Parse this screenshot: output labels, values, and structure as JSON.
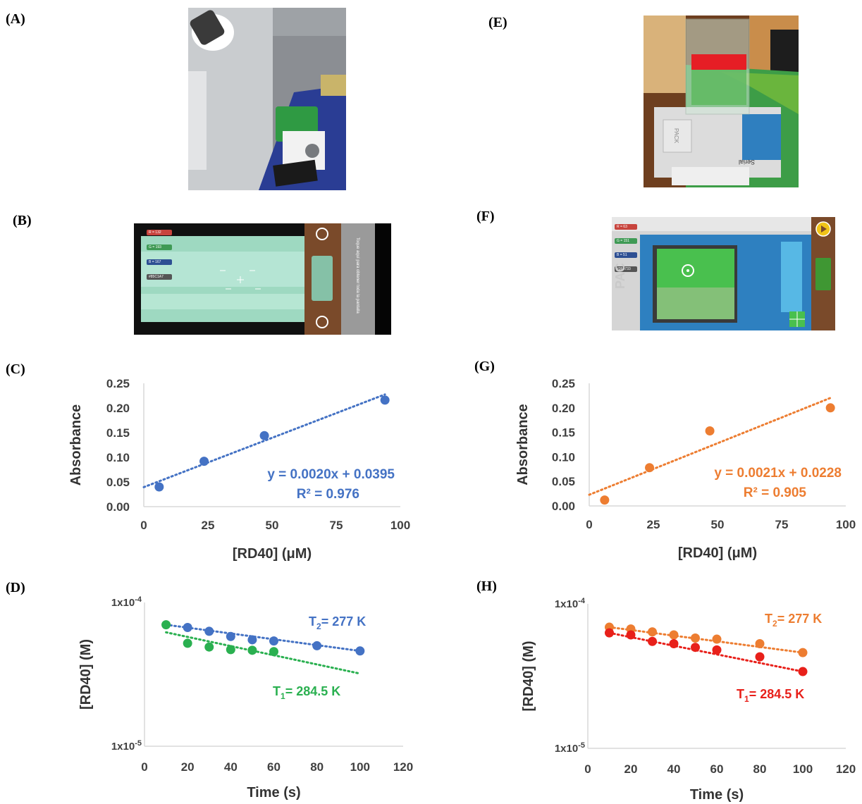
{
  "panel_labels": {
    "a": "(A)",
    "b": "(B)",
    "c": "(C)",
    "d": "(D)",
    "e": "(E)",
    "f": "(F)",
    "g": "(G)",
    "h": "(H)"
  },
  "photos": {
    "b": {
      "chips": [
        "R = 132",
        "G = 193",
        "B = 167",
        "#85C1A7"
      ],
      "chip_colors": [
        "#c8443d",
        "#3f9a55",
        "#2d4f93",
        "#555555"
      ],
      "side_text": "Toque aquí para obtener toda la pantalla",
      "swatch_color": "#85C1A7"
    },
    "e": {
      "box_text": "PACK",
      "book_text": "Serial"
    },
    "f": {
      "chips": [
        "R = 63",
        "G = 151",
        "B = 51",
        "#3F9733"
      ],
      "chip_colors": [
        "#c8443d",
        "#3f9a55",
        "#2d4f93",
        "#555555"
      ],
      "box_text": "PAC",
      "swatch_color": "#3F9733"
    }
  },
  "chart_data": [
    {
      "id": "C",
      "type": "scatter",
      "xlabel": "[RD40] (μM)",
      "ylabel": "Absorbance",
      "xlim": [
        0,
        100
      ],
      "ylim": [
        0,
        0.25
      ],
      "xticks": [
        "0",
        "25",
        "50",
        "75",
        "100"
      ],
      "yticks": [
        "0.00",
        "0.05",
        "0.10",
        "0.15",
        "0.20",
        "0.25"
      ],
      "color": "#4472c4",
      "x": [
        6,
        23.5,
        47,
        94
      ],
      "y": [
        0.04,
        0.092,
        0.144,
        0.216
      ],
      "trend": {
        "slope": 0.002,
        "intercept": 0.0395,
        "x_range": [
          0,
          94
        ]
      },
      "equation": "y = 0.0020x + 0.0395",
      "r2": "R² = 0.976"
    },
    {
      "id": "G",
      "type": "scatter",
      "xlabel": "[RD40] (μM)",
      "ylabel": "Absorbance",
      "xlim": [
        0,
        100
      ],
      "ylim": [
        0,
        0.25
      ],
      "xticks": [
        "0",
        "25",
        "50",
        "75",
        "100"
      ],
      "yticks": [
        "0.00",
        "0.05",
        "0.10",
        "0.15",
        "0.20",
        "0.25"
      ],
      "color": "#ed7d31",
      "x": [
        6,
        23.5,
        47,
        94
      ],
      "y": [
        0.012,
        0.078,
        0.153,
        0.2
      ],
      "trend": {
        "slope": 0.0021,
        "intercept": 0.0228,
        "x_range": [
          0,
          94
        ]
      },
      "equation": "y = 0.0021x + 0.0228",
      "r2": "R² = 0.905"
    },
    {
      "id": "D",
      "type": "scatter",
      "scale_y": "log",
      "xlabel": "Time (s)",
      "ylabel": "[RD40] (M)",
      "xlim": [
        0,
        120
      ],
      "ylim": [
        1e-05,
        0.0001
      ],
      "xticks": [
        "0",
        "20",
        "40",
        "60",
        "80",
        "100",
        "120"
      ],
      "yticks": [
        {
          "value": 1e-05,
          "label": "1x10-5"
        },
        {
          "value": 0.0001,
          "label": "1x10-4"
        }
      ],
      "series": [
        {
          "name": "T2= 277 K",
          "sub": "2",
          "color": "#4472c4",
          "x": [
            20,
            30,
            40,
            50,
            60,
            80,
            100
          ],
          "y": [
            6.7e-05,
            6.3e-05,
            5.8e-05,
            5.5e-05,
            5.4e-05,
            5e-05,
            4.6e-05
          ],
          "trend": {
            "x_range": [
              10,
              100
            ],
            "y_range": [
              7e-05,
              4.6e-05
            ]
          }
        },
        {
          "name": "T1= 284.5 K",
          "sub": "1",
          "color": "#2ab050",
          "x": [
            10,
            20,
            30,
            40,
            50,
            60
          ],
          "y": [
            7e-05,
            5.2e-05,
            4.9e-05,
            4.7e-05,
            4.65e-05,
            4.55e-05
          ],
          "trend": {
            "x_range": [
              10,
              100
            ],
            "y_range": [
              6.2e-05,
              3.2e-05
            ]
          }
        }
      ]
    },
    {
      "id": "H",
      "type": "scatter",
      "scale_y": "log",
      "xlabel": "Time (s)",
      "ylabel": "[RD40] (M)",
      "xlim": [
        0,
        120
      ],
      "ylim": [
        1e-05,
        0.0001
      ],
      "xticks": [
        "0",
        "20",
        "40",
        "60",
        "80",
        "100",
        "120"
      ],
      "yticks": [
        {
          "value": 1e-05,
          "label": "1x10-5"
        },
        {
          "value": 0.0001,
          "label": "1x10-4"
        }
      ],
      "series": [
        {
          "name": "T2= 277 K",
          "sub": "2",
          "color": "#ed7d31",
          "x": [
            10,
            20,
            30,
            40,
            50,
            60,
            80,
            100
          ],
          "y": [
            6.9e-05,
            6.7e-05,
            6.4e-05,
            6.1e-05,
            5.8e-05,
            5.7e-05,
            5.3e-05,
            4.6e-05
          ],
          "trend": {
            "x_range": [
              10,
              100
            ],
            "y_range": [
              6.9e-05,
              4.6e-05
            ]
          }
        },
        {
          "name": "T1= 284.5 K",
          "sub": "1",
          "color": "#e8201a",
          "x": [
            10,
            20,
            30,
            40,
            50,
            60,
            80,
            100
          ],
          "y": [
            6.3e-05,
            6.1e-05,
            5.5e-05,
            5.3e-05,
            5e-05,
            4.8e-05,
            4.3e-05,
            3.4e-05
          ],
          "trend": {
            "x_range": [
              10,
              100
            ],
            "y_range": [
              6.3e-05,
              3.4e-05
            ]
          }
        }
      ]
    }
  ]
}
